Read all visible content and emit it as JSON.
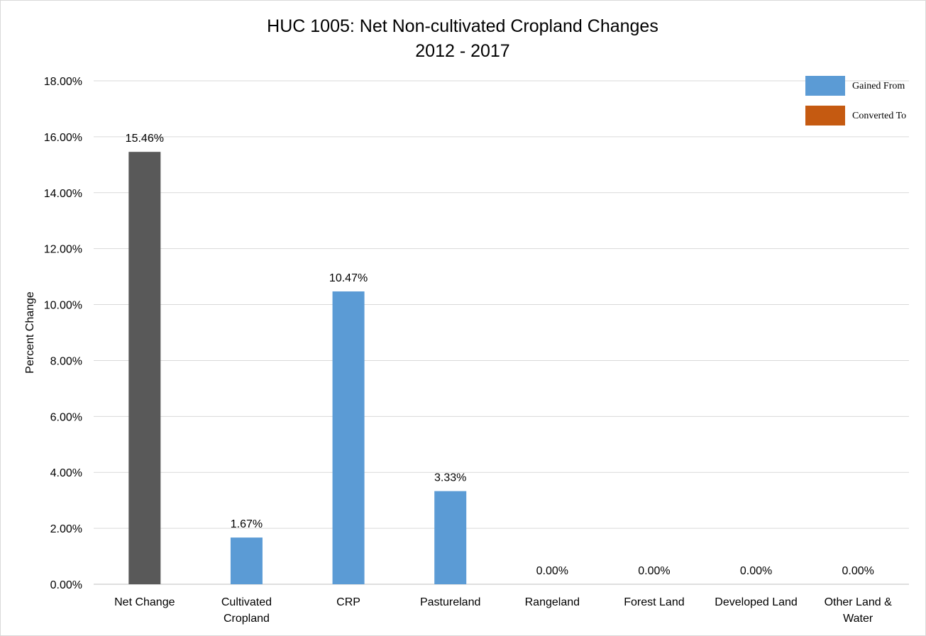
{
  "chart_data": {
    "type": "bar",
    "title": "HUC 1005: Net Non-cultivated Cropland Changes",
    "subtitle": "2012 - 2017",
    "xlabel": "",
    "ylabel": "Percent Change",
    "ylim": [
      0,
      18
    ],
    "yticks": [
      "0.00%",
      "2.00%",
      "4.00%",
      "6.00%",
      "8.00%",
      "10.00%",
      "12.00%",
      "14.00%",
      "16.00%",
      "18.00%"
    ],
    "grid": true,
    "legend_position": "top-right",
    "categories": [
      [
        "Net Change"
      ],
      [
        "Cultivated",
        "Cropland"
      ],
      [
        "CRP"
      ],
      [
        "Pastureland"
      ],
      [
        "Rangeland"
      ],
      [
        "Forest Land"
      ],
      [
        "Developed Land"
      ],
      [
        "Other Land &",
        "Water"
      ]
    ],
    "values": [
      15.46,
      1.67,
      10.47,
      3.33,
      0.0,
      0.0,
      0.0,
      0.0
    ],
    "data_labels": [
      "15.46%",
      "1.67%",
      "10.47%",
      "3.33%",
      "0.00%",
      "0.00%",
      "0.00%",
      "0.00%"
    ],
    "bar_colors": [
      "#595959",
      "#5b9bd5",
      "#5b9bd5",
      "#5b9bd5",
      "#5b9bd5",
      "#5b9bd5",
      "#5b9bd5",
      "#5b9bd5"
    ],
    "legend": [
      {
        "name": "Gained From",
        "color": "#5b9bd5"
      },
      {
        "name": "Converted To",
        "color": "#c55a11"
      }
    ]
  }
}
